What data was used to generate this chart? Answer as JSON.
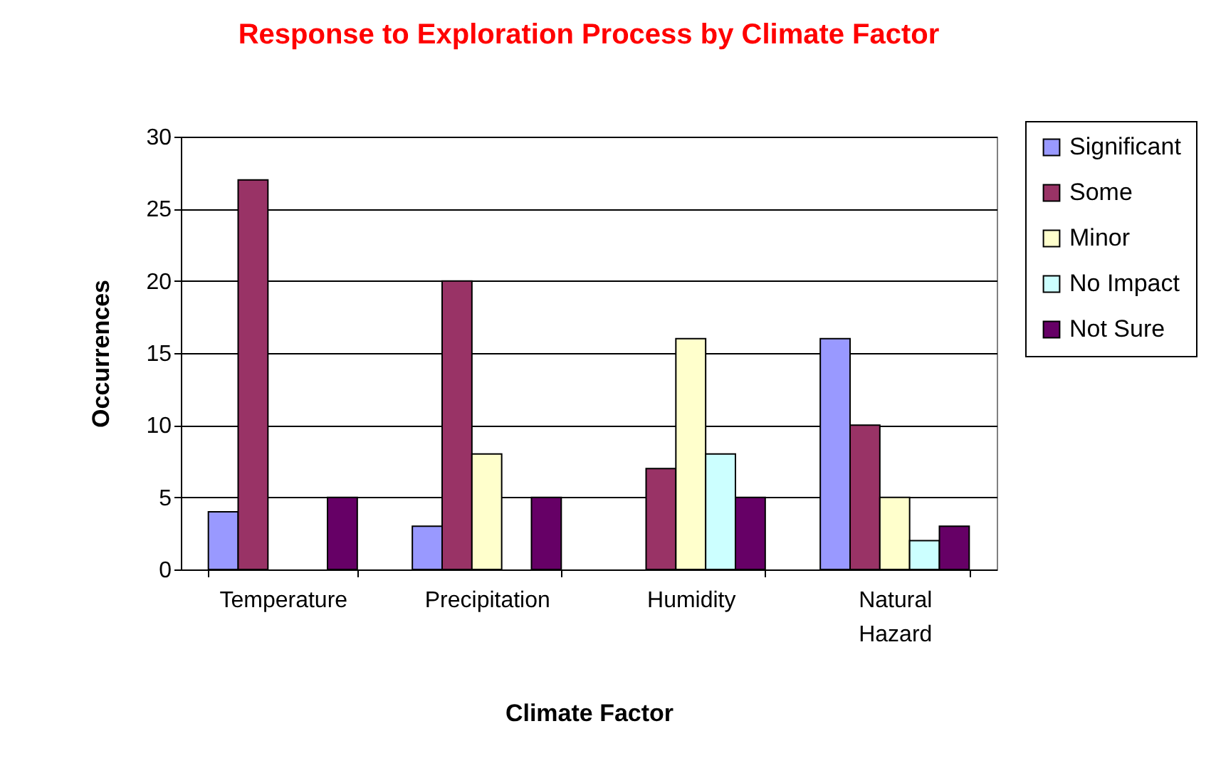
{
  "chart_data": {
    "type": "bar",
    "title": "Response to Exploration Process by Climate Factor",
    "xlabel": "Climate Factor",
    "ylabel": "Occurrences",
    "categories": [
      "Temperature",
      "Precipitation",
      "Humidity",
      "Natural Hazard"
    ],
    "series": [
      {
        "name": "Significant",
        "color": "#9999ff",
        "values": [
          4,
          3,
          null,
          16
        ]
      },
      {
        "name": "Some",
        "color": "#993366",
        "values": [
          27,
          20,
          7,
          10
        ]
      },
      {
        "name": "Minor",
        "color": "#ffffcc",
        "values": [
          null,
          8,
          16,
          5
        ]
      },
      {
        "name": "No Impact",
        "color": "#ccffff",
        "values": [
          null,
          null,
          8,
          2
        ]
      },
      {
        "name": "Not Sure",
        "color": "#660066",
        "values": [
          5,
          5,
          5,
          3
        ]
      }
    ],
    "ylim": [
      0,
      30
    ],
    "yticks": [
      0,
      5,
      10,
      15,
      20,
      25,
      30
    ],
    "grid": "y",
    "legend": "right"
  }
}
